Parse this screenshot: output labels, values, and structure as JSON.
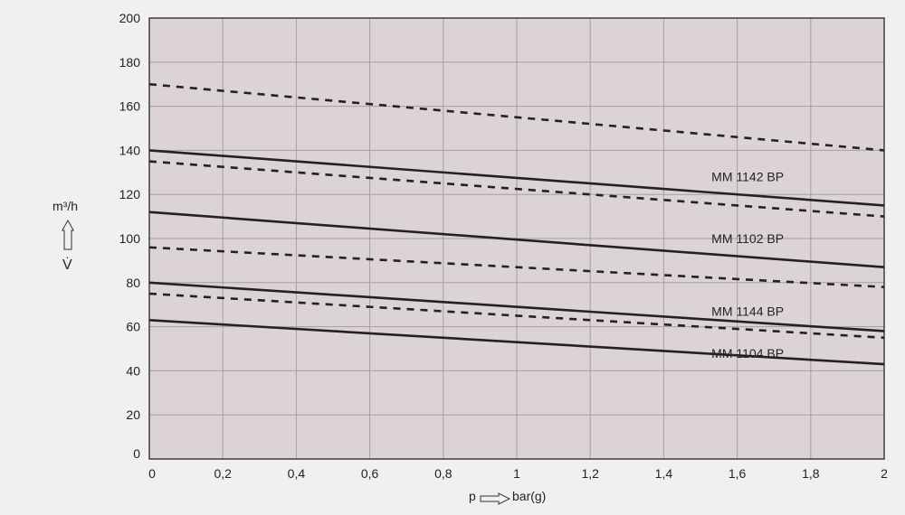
{
  "chart_data": {
    "type": "line",
    "ylabel_unit": "m³/h",
    "ylabel_symbol": "V̇",
    "xlabel_symbol": "p",
    "xlabel_unit": "bar(g)",
    "xlim": [
      0,
      2
    ],
    "ylim": [
      0,
      200
    ],
    "x_ticks": [
      "0",
      "0,2",
      "0,4",
      "0,6",
      "0,8",
      "1",
      "1,2",
      "1,4",
      "1,6",
      "1,8",
      "2"
    ],
    "y_ticks": [
      "0",
      "20",
      "40",
      "60",
      "80",
      "100",
      "120",
      "140",
      "160",
      "180",
      "200"
    ],
    "grid": true,
    "colors": {
      "plot_background": "#dcd3d6",
      "grid": "#a89ea2",
      "line": "#222222",
      "page_background": "#f2eff0"
    },
    "series": [
      {
        "style": "dashed",
        "x": [
          0,
          2
        ],
        "y": [
          170,
          140
        ]
      },
      {
        "style": "solid",
        "x": [
          0,
          2
        ],
        "y": [
          140,
          115
        ]
      },
      {
        "style": "dashed",
        "x": [
          0,
          2
        ],
        "y": [
          135,
          110
        ]
      },
      {
        "style": "solid",
        "x": [
          0,
          2
        ],
        "y": [
          112,
          87
        ]
      },
      {
        "style": "dashed",
        "x": [
          0,
          2
        ],
        "y": [
          96,
          78
        ]
      },
      {
        "style": "solid",
        "x": [
          0,
          2
        ],
        "y": [
          80,
          58
        ]
      },
      {
        "style": "dashed",
        "x": [
          0,
          2
        ],
        "y": [
          75,
          55
        ]
      },
      {
        "style": "solid",
        "x": [
          0,
          2
        ],
        "y": [
          63,
          43
        ]
      }
    ],
    "annotations": [
      {
        "text": "MM 1142 BP",
        "x": 1.53,
        "y": 128
      },
      {
        "text": "MM 1102 BP",
        "x": 1.53,
        "y": 100
      },
      {
        "text": "MM 1144 BP",
        "x": 1.53,
        "y": 67
      },
      {
        "text": "MM 1104 BP",
        "x": 1.53,
        "y": 48
      }
    ]
  }
}
